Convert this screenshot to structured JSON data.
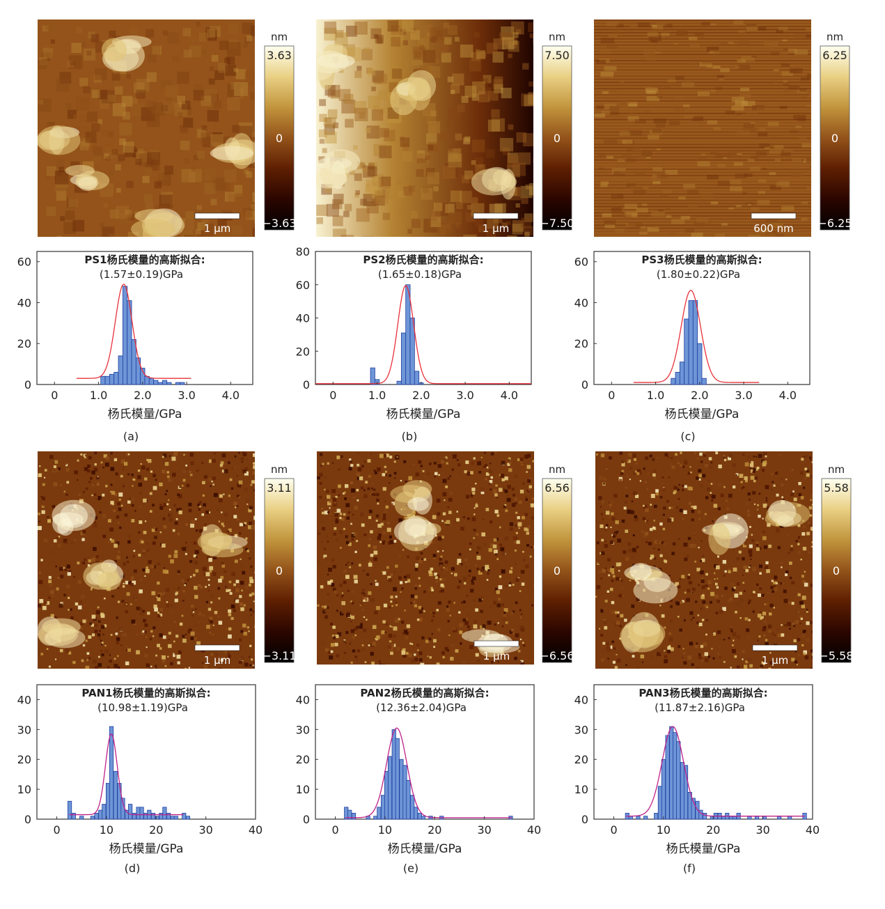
{
  "colors": {
    "afm_scale": [
      "#000000",
      "#2c0600",
      "#5e1f02",
      "#93531a",
      "#c2953d",
      "#e9d084",
      "#fffff0"
    ],
    "bar_fill": "#6e95d6",
    "bar_stroke": "#1f3fa0",
    "fit_line_ps": "#e8303a",
    "fit_line_pan": "#c0208a",
    "axis": "#333333"
  },
  "afm_images": [
    {
      "id": "ps1",
      "colorbar_unit": "nm",
      "colorbar_max": "3.63",
      "colorbar_mid": "0",
      "colorbar_min": "−3.63",
      "scale_bar": "1 μm",
      "texture": "smooth",
      "seed": 11,
      "bright_spots": [
        [
          0.08,
          0.55
        ],
        [
          0.4,
          0.15
        ],
        [
          0.9,
          0.6
        ],
        [
          0.55,
          0.95
        ],
        [
          0.22,
          0.72
        ]
      ]
    },
    {
      "id": "ps2",
      "colorbar_unit": "nm",
      "colorbar_max": "7.50",
      "colorbar_mid": "0",
      "colorbar_min": "−7.50",
      "scale_bar": "1 μm",
      "texture": "gradient",
      "seed": 23,
      "bright_spots": [
        [
          0.05,
          0.2
        ],
        [
          0.08,
          0.7
        ],
        [
          0.45,
          0.35
        ],
        [
          0.85,
          0.75
        ]
      ]
    },
    {
      "id": "ps3",
      "colorbar_unit": "nm",
      "colorbar_max": "6.25",
      "colorbar_mid": "0",
      "colorbar_min": "−6.25",
      "scale_bar": "600 nm",
      "texture": "stripes",
      "seed": 37,
      "bright_spots": []
    },
    {
      "id": "pan1",
      "colorbar_unit": "nm",
      "colorbar_max": "3.11",
      "colorbar_mid": "0",
      "colorbar_min": "−3.11",
      "scale_bar": "1 μm",
      "texture": "grainy",
      "seed": 41,
      "bright_spots": [
        [
          0.15,
          0.3
        ],
        [
          0.3,
          0.55
        ],
        [
          0.85,
          0.45
        ],
        [
          0.1,
          0.85
        ]
      ]
    },
    {
      "id": "pan2",
      "colorbar_unit": "nm",
      "colorbar_max": "6.56",
      "colorbar_mid": "0",
      "colorbar_min": "−6.56",
      "scale_bar": "1 μm",
      "texture": "grainy",
      "seed": 53,
      "bright_spots": [
        [
          0.45,
          0.2
        ],
        [
          0.5,
          0.4
        ],
        [
          0.8,
          0.9
        ]
      ]
    },
    {
      "id": "pan3",
      "colorbar_unit": "nm",
      "colorbar_max": "5.58",
      "colorbar_mid": "0",
      "colorbar_min": "−5.58",
      "scale_bar": "1 μm",
      "texture": "grainy",
      "seed": 67,
      "bright_spots": [
        [
          0.85,
          0.3
        ],
        [
          0.25,
          0.6
        ],
        [
          0.2,
          0.85
        ],
        [
          0.6,
          0.4
        ]
      ]
    }
  ],
  "chart_data": [
    {
      "type": "bar",
      "id": "ps1",
      "panel_label": "(a)",
      "title_line1": "PS1杨氏模量的高斯拟合:",
      "title_line2": "(1.57±0.19)GPa",
      "xlabel": "杨氏模量/GPa",
      "ylabel": "",
      "xlim": [
        -0.4,
        4.5
      ],
      "ylim": [
        0,
        65
      ],
      "xticks": [
        "0",
        "1.0",
        "2.0",
        "3.0",
        "4.0"
      ],
      "xtick_values": [
        0,
        1,
        2,
        3,
        4
      ],
      "yticks": [
        "0",
        "20",
        "40",
        "60"
      ],
      "ytick_values": [
        0,
        20,
        40,
        60
      ],
      "bin_width": 0.1,
      "bins": [
        1.1,
        1.2,
        1.3,
        1.4,
        1.5,
        1.6,
        1.7,
        1.8,
        1.9,
        2.0,
        2.1,
        2.2,
        2.3,
        2.4,
        2.5,
        2.6,
        2.7,
        2.8,
        2.9
      ],
      "values": [
        4,
        4,
        5,
        6,
        14,
        48,
        41,
        22,
        13,
        8,
        4,
        3,
        2,
        1,
        2,
        1,
        0,
        1,
        1
      ],
      "fit": {
        "mean": 1.57,
        "sigma": 0.19,
        "amplitude": 46,
        "baseline": 3,
        "x_from": 0.5,
        "x_to": 3.1
      }
    },
    {
      "type": "bar",
      "id": "ps2",
      "panel_label": "(b)",
      "title_line1": "PS2杨氏模量的高斯拟合:",
      "title_line2": "(1.65±0.18)GPa",
      "xlabel": "杨氏模量/GPa",
      "ylabel": "",
      "xlim": [
        -0.4,
        4.5
      ],
      "ylim": [
        0,
        80
      ],
      "xticks": [
        "0",
        "1.0",
        "2.0",
        "3.0",
        "4.0"
      ],
      "xtick_values": [
        0,
        1,
        2,
        3,
        4
      ],
      "yticks": [
        "0",
        "20",
        "40",
        "60",
        "80"
      ],
      "ytick_values": [
        0,
        20,
        40,
        60,
        80
      ],
      "bin_width": 0.1,
      "bins": [
        0.9,
        1.0,
        1.5,
        1.6,
        1.7,
        1.8,
        1.9,
        2.0
      ],
      "values": [
        10,
        3,
        2,
        31,
        60,
        40,
        8,
        1
      ],
      "fit": {
        "mean": 1.65,
        "sigma": 0.18,
        "amplitude": 59,
        "baseline": 0.5,
        "x_from": -0.4,
        "x_to": 4.5
      }
    },
    {
      "type": "bar",
      "id": "ps3",
      "panel_label": "(c)",
      "title_line1": "PS3杨氏模量的高斯拟合:",
      "title_line2": "(1.80±0.22)GPa",
      "xlabel": "杨氏模量/GPa",
      "ylabel": "",
      "xlim": [
        -0.4,
        4.5
      ],
      "ylim": [
        0,
        65
      ],
      "xticks": [
        "0",
        "1.0",
        "2.0",
        "3.0",
        "4.0"
      ],
      "xtick_values": [
        0,
        1,
        2,
        3,
        4
      ],
      "yticks": [
        "0",
        "20",
        "40",
        "60"
      ],
      "ytick_values": [
        0,
        20,
        40,
        60
      ],
      "bin_width": 0.1,
      "bins": [
        1.4,
        1.5,
        1.6,
        1.7,
        1.8,
        1.9,
        2.0,
        2.1
      ],
      "values": [
        3,
        6,
        11,
        32,
        41,
        41,
        20,
        3
      ],
      "fit": {
        "mean": 1.8,
        "sigma": 0.22,
        "amplitude": 45,
        "baseline": 1,
        "x_from": 0.5,
        "x_to": 3.35
      }
    },
    {
      "type": "bar",
      "id": "pan1",
      "panel_label": "(d)",
      "title_line1": "PAN1杨氏模量的高斯拟合:",
      "title_line2": "(10.98±1.19)GPa",
      "xlabel": "杨氏模量/GPa",
      "ylabel": "",
      "xlim": [
        -4,
        40
      ],
      "ylim": [
        0,
        45
      ],
      "xticks": [
        "0",
        "10",
        "20",
        "30",
        "40"
      ],
      "xtick_values": [
        0,
        10,
        20,
        30,
        40
      ],
      "yticks": [
        "0",
        "10",
        "20",
        "30",
        "40"
      ],
      "ytick_values": [
        0,
        10,
        20,
        30,
        40
      ],
      "bin_width": 0.75,
      "bins": [
        2.6,
        3.4,
        5.0,
        7.2,
        8.0,
        8.8,
        9.5,
        10.3,
        11.0,
        11.8,
        12.6,
        13.3,
        14.1,
        14.8,
        15.6,
        16.4,
        17.1,
        17.9,
        18.6,
        19.4,
        20.2,
        21.0,
        21.7,
        22.5,
        23.3,
        24.0,
        25.6,
        26.4
      ],
      "values": [
        6,
        2,
        1,
        1,
        2,
        3,
        5,
        12,
        31,
        16,
        12,
        7,
        3,
        5,
        2,
        4,
        4,
        2,
        3,
        2,
        1,
        2,
        4,
        2,
        1,
        1,
        2,
        1
      ],
      "fit": {
        "mean": 10.98,
        "sigma": 1.19,
        "amplitude": 27,
        "baseline": 1.5,
        "x_from": 2.5,
        "x_to": 25.5
      }
    },
    {
      "type": "bar",
      "id": "pan2",
      "panel_label": "(e)",
      "title_line1": "PAN2杨氏模量的高斯拟合:",
      "title_line2": "(12.36±2.04)GPa",
      "xlabel": "杨氏模量/GPa",
      "ylabel": "",
      "xlim": [
        -4,
        40
      ],
      "ylim": [
        0,
        45
      ],
      "xticks": [
        "0",
        "10",
        "20",
        "30",
        "40"
      ],
      "xtick_values": [
        0,
        10,
        20,
        30,
        40
      ],
      "yticks": [
        "0",
        "10",
        "20",
        "30",
        "40"
      ],
      "ytick_values": [
        0,
        10,
        20,
        30,
        40
      ],
      "bin_width": 0.75,
      "bins": [
        2.2,
        2.9,
        3.7,
        6.6,
        8.1,
        8.8,
        9.6,
        10.3,
        11.0,
        11.8,
        12.5,
        13.3,
        14.0,
        14.7,
        15.5,
        16.2,
        17.0,
        17.7,
        19.2,
        21.4,
        35.3
      ],
      "values": [
        4,
        3,
        2,
        1,
        1,
        4,
        8,
        16,
        21,
        30,
        27,
        20,
        18,
        13,
        8,
        4,
        2,
        1,
        1,
        1,
        1
      ],
      "fit": {
        "mean": 12.36,
        "sigma": 2.04,
        "amplitude": 30,
        "baseline": 0.5,
        "x_from": 2.0,
        "x_to": 35.5
      }
    },
    {
      "type": "bar",
      "id": "pan3",
      "panel_label": "(f)",
      "title_line1": "PAN3杨氏模量的高斯拟合:",
      "title_line2": "(11.87±2.16)GPa",
      "xlabel": "杨氏模量/GPa",
      "ylabel": "",
      "xlim": [
        -4,
        40
      ],
      "ylim": [
        0,
        45
      ],
      "xticks": [
        "0",
        "10",
        "20",
        "30",
        "40"
      ],
      "xtick_values": [
        0,
        10,
        20,
        30,
        40
      ],
      "yticks": [
        "0",
        "10",
        "20",
        "30",
        "40"
      ],
      "ytick_values": [
        0,
        10,
        20,
        30,
        40
      ],
      "bin_width": 0.75,
      "bins": [
        2.7,
        3.4,
        4.9,
        6.4,
        8.5,
        9.3,
        10.0,
        10.8,
        11.6,
        12.3,
        13.0,
        13.8,
        14.5,
        15.3,
        16.0,
        16.8,
        17.5,
        18.3,
        19.8,
        20.5,
        21.3,
        22.1,
        22.8,
        23.6,
        24.3,
        25.1,
        27.3,
        28.8,
        30.3,
        33.3,
        35.4,
        38.4
      ],
      "values": [
        2,
        1,
        1,
        1,
        2,
        11,
        20,
        28,
        31,
        29,
        26,
        19,
        18,
        9,
        7,
        6,
        3,
        2,
        1,
        2,
        2,
        1,
        2,
        1,
        1,
        2,
        1,
        1,
        1,
        1,
        1,
        2
      ],
      "fit": {
        "mean": 11.87,
        "sigma": 2.16,
        "amplitude": 30,
        "baseline": 1,
        "x_from": 2.5,
        "x_to": 38.5
      }
    }
  ]
}
